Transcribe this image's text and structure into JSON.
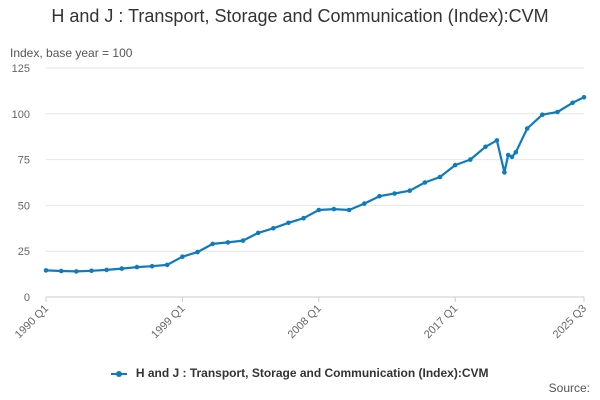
{
  "chart_data": {
    "type": "line",
    "title": "H and J : Transport, Storage and Communication (Index):CVM",
    "y_unit_label": "Index, base year = 100",
    "ylim": [
      0,
      125
    ],
    "y_ticks": [
      0,
      25,
      50,
      75,
      100,
      125
    ],
    "x_ticks": [
      "1990 Q1",
      "1999 Q1",
      "2008 Q1",
      "2017 Q1",
      "2025 Q3"
    ],
    "xlabel": "",
    "ylabel": "",
    "grid": true,
    "legend_position": "bottom",
    "series": [
      {
        "name": "H and J : Transport, Storage and Communication (Index):CVM",
        "color": "#0f7bbf",
        "x": [
          "1990 Q1",
          "1991 Q1",
          "1992 Q1",
          "1993 Q1",
          "1994 Q1",
          "1995 Q1",
          "1996 Q1",
          "1997 Q1",
          "1998 Q1",
          "1999 Q1",
          "2000 Q1",
          "2001 Q1",
          "2002 Q1",
          "2003 Q1",
          "2004 Q1",
          "2005 Q1",
          "2006 Q1",
          "2007 Q1",
          "2008 Q1",
          "2009 Q1",
          "2010 Q1",
          "2011 Q1",
          "2012 Q1",
          "2013 Q1",
          "2014 Q1",
          "2015 Q1",
          "2016 Q1",
          "2017 Q1",
          "2018 Q1",
          "2019 Q1",
          "2019 Q4",
          "2020 Q2",
          "2020 Q3",
          "2020 Q4",
          "2021 Q1",
          "2021 Q4",
          "2022 Q4",
          "2023 Q4",
          "2024 Q4",
          "2025 Q3"
        ],
        "values": [
          14.5,
          14.2,
          14.0,
          14.3,
          14.8,
          15.5,
          16.3,
          16.8,
          17.5,
          22.0,
          24.5,
          29.0,
          29.8,
          30.8,
          35.0,
          37.5,
          40.5,
          43.0,
          47.5,
          48.0,
          47.5,
          51.0,
          55.0,
          56.5,
          58.0,
          62.5,
          65.5,
          72.0,
          75.0,
          82.0,
          85.5,
          68.0,
          77.5,
          76.5,
          79.0,
          92.0,
          99.5,
          101.0,
          106.0,
          109.0
        ]
      }
    ]
  },
  "source_label": "Source:"
}
